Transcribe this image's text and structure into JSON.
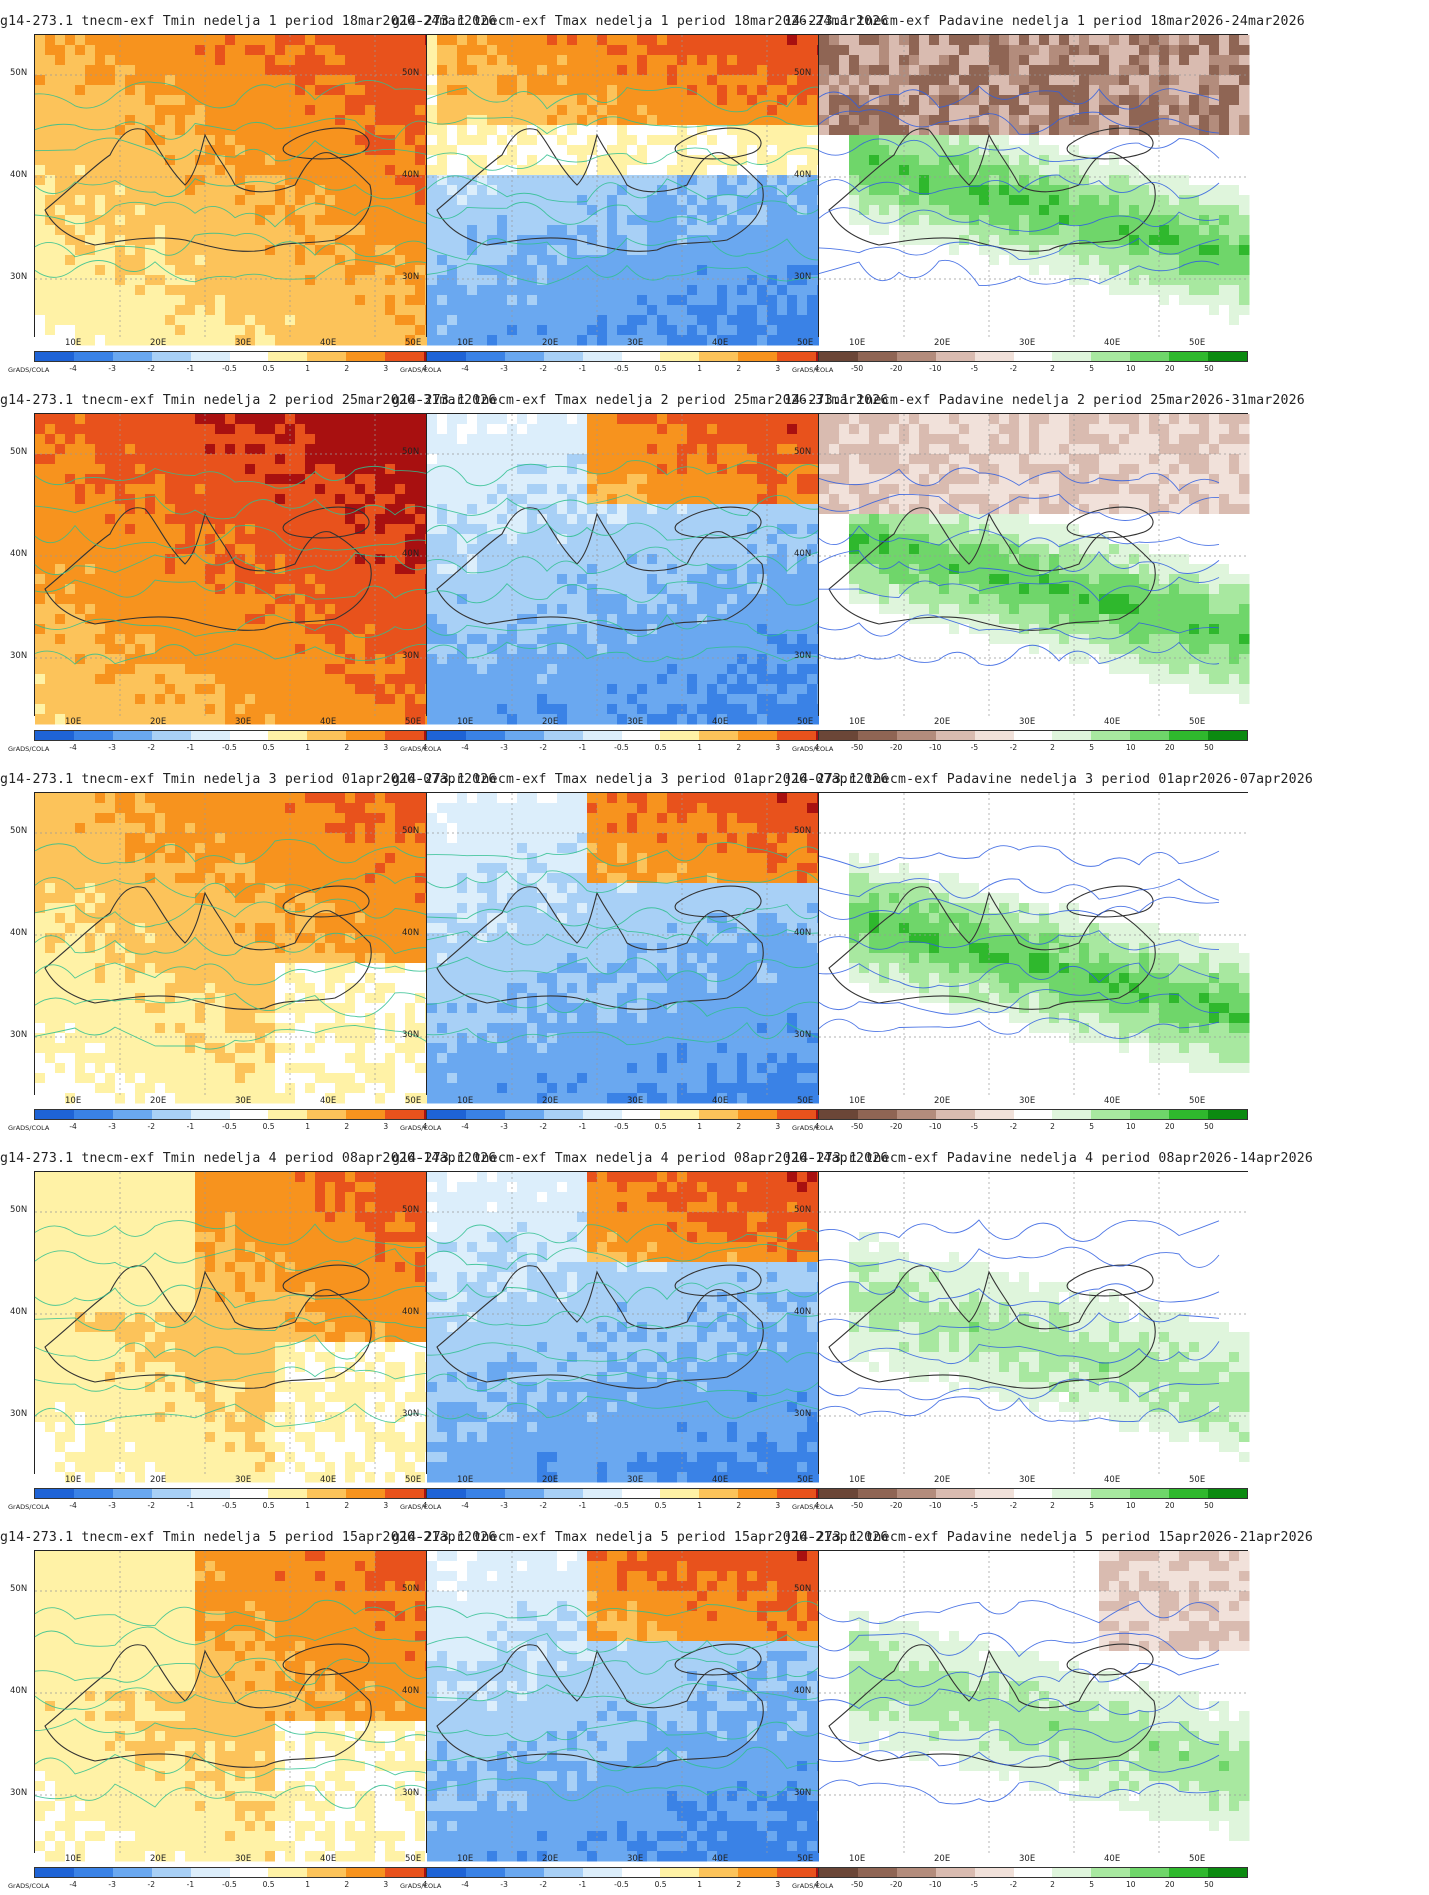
{
  "layout_note_free": true,
  "footer_label": "GrADS/COLA",
  "lat_labels": [
    "50N",
    "40N",
    "30N"
  ],
  "lon_labels": [
    "10E",
    "20E",
    "30E",
    "40E",
    "50E"
  ],
  "legends": {
    "temp": {
      "ticks": [
        "-4",
        "-3",
        "-2",
        "-1",
        "-0.5",
        "0.5",
        "1",
        "2",
        "3",
        "4"
      ],
      "colors": [
        "#1e63d6",
        "#3a82e6",
        "#6aa8f0",
        "#a8d0f6",
        "#dceefb",
        "#ffffff",
        "#fff2a6",
        "#fcc35a",
        "#f7931e",
        "#e8521c",
        "#a81010"
      ]
    },
    "precip": {
      "ticks": [
        "-50",
        "-20",
        "-10",
        "-5",
        "-2",
        "2",
        "5",
        "10",
        "20",
        "50"
      ],
      "colors": [
        "#6b4637",
        "#8f6554",
        "#b38c7c",
        "#d9bbb0",
        "#f1e1da",
        "#ffffff",
        "#dff5dc",
        "#a8e8a0",
        "#6fd66a",
        "#2fb82d",
        "#0b8a10"
      ]
    }
  },
  "panels": [
    {
      "title": "g14-273.1 tnecm-exf Tmin nedelja 1 period 18mar2026-24mar2026",
      "type": "tmin",
      "legend": "temp"
    },
    {
      "title": "g14-273.1 tnecm-exf Tmax nedelja 1 period 18mar2026-24mar2026",
      "type": "tmax",
      "legend": "temp"
    },
    {
      "title": "14-273.1 tnecm-exf Padavine nedelja 1 period 18mar2026-24mar2026",
      "type": "precip",
      "legend": "precip"
    },
    {
      "title": "g14-273.1 tnecm-exf Tmin nedelja 2 period 25mar2026-31mar2026",
      "type": "tmin",
      "legend": "temp"
    },
    {
      "title": "g14-273.1 tnecm-exf Tmax nedelja 2 period 25mar2026-31mar2026",
      "type": "tmax",
      "legend": "temp"
    },
    {
      "title": "14-273.1 tnecm-exf Padavine nedelja 2 period 25mar2026-31mar2026",
      "type": "precip",
      "legend": "precip"
    },
    {
      "title": "g14-273.1 tnecm-exf Tmin nedelja 3 period 01apr2026-07apr2026",
      "type": "tmin",
      "legend": "temp"
    },
    {
      "title": "g14-273.1 tnecm-exf Tmax nedelja 3 period 01apr2026-07apr2026",
      "type": "tmax",
      "legend": "temp"
    },
    {
      "title": "ј14-273.1 tnecm-exf Padavine nedelja 3 period 01apr2026-07apr2026",
      "type": "precip",
      "legend": "precip"
    },
    {
      "title": "g14-273.1 tnecm-exf Tmin nedelja 4 period 08apr2026-14apr2026",
      "type": "tmin",
      "legend": "temp"
    },
    {
      "title": "g14-273.1 tnecm-exf Tmax nedelja 4 period 08apr2026-14apr2026",
      "type": "tmax",
      "legend": "temp"
    },
    {
      "title": "ј14-273.1 tnecm-exf Padavine nedelja 4 period 08apr2026-14apr2026",
      "type": "precip",
      "legend": "precip"
    },
    {
      "title": "g14-273.1 tnecm-exf Tmin nedelja 5 period 15apr2026-21apr2026",
      "type": "tmin",
      "legend": "temp"
    },
    {
      "title": "g14-273.1 tnecm-exf Tmax nedelja 5 period 15apr2026-21apr2026",
      "type": "tmax",
      "legend": "temp"
    },
    {
      "title": "ј14-273.1 tnecm-exf Padavine nedelja 5 period 15apr2026-21apr2026",
      "type": "precip",
      "legend": "precip"
    }
  ]
}
